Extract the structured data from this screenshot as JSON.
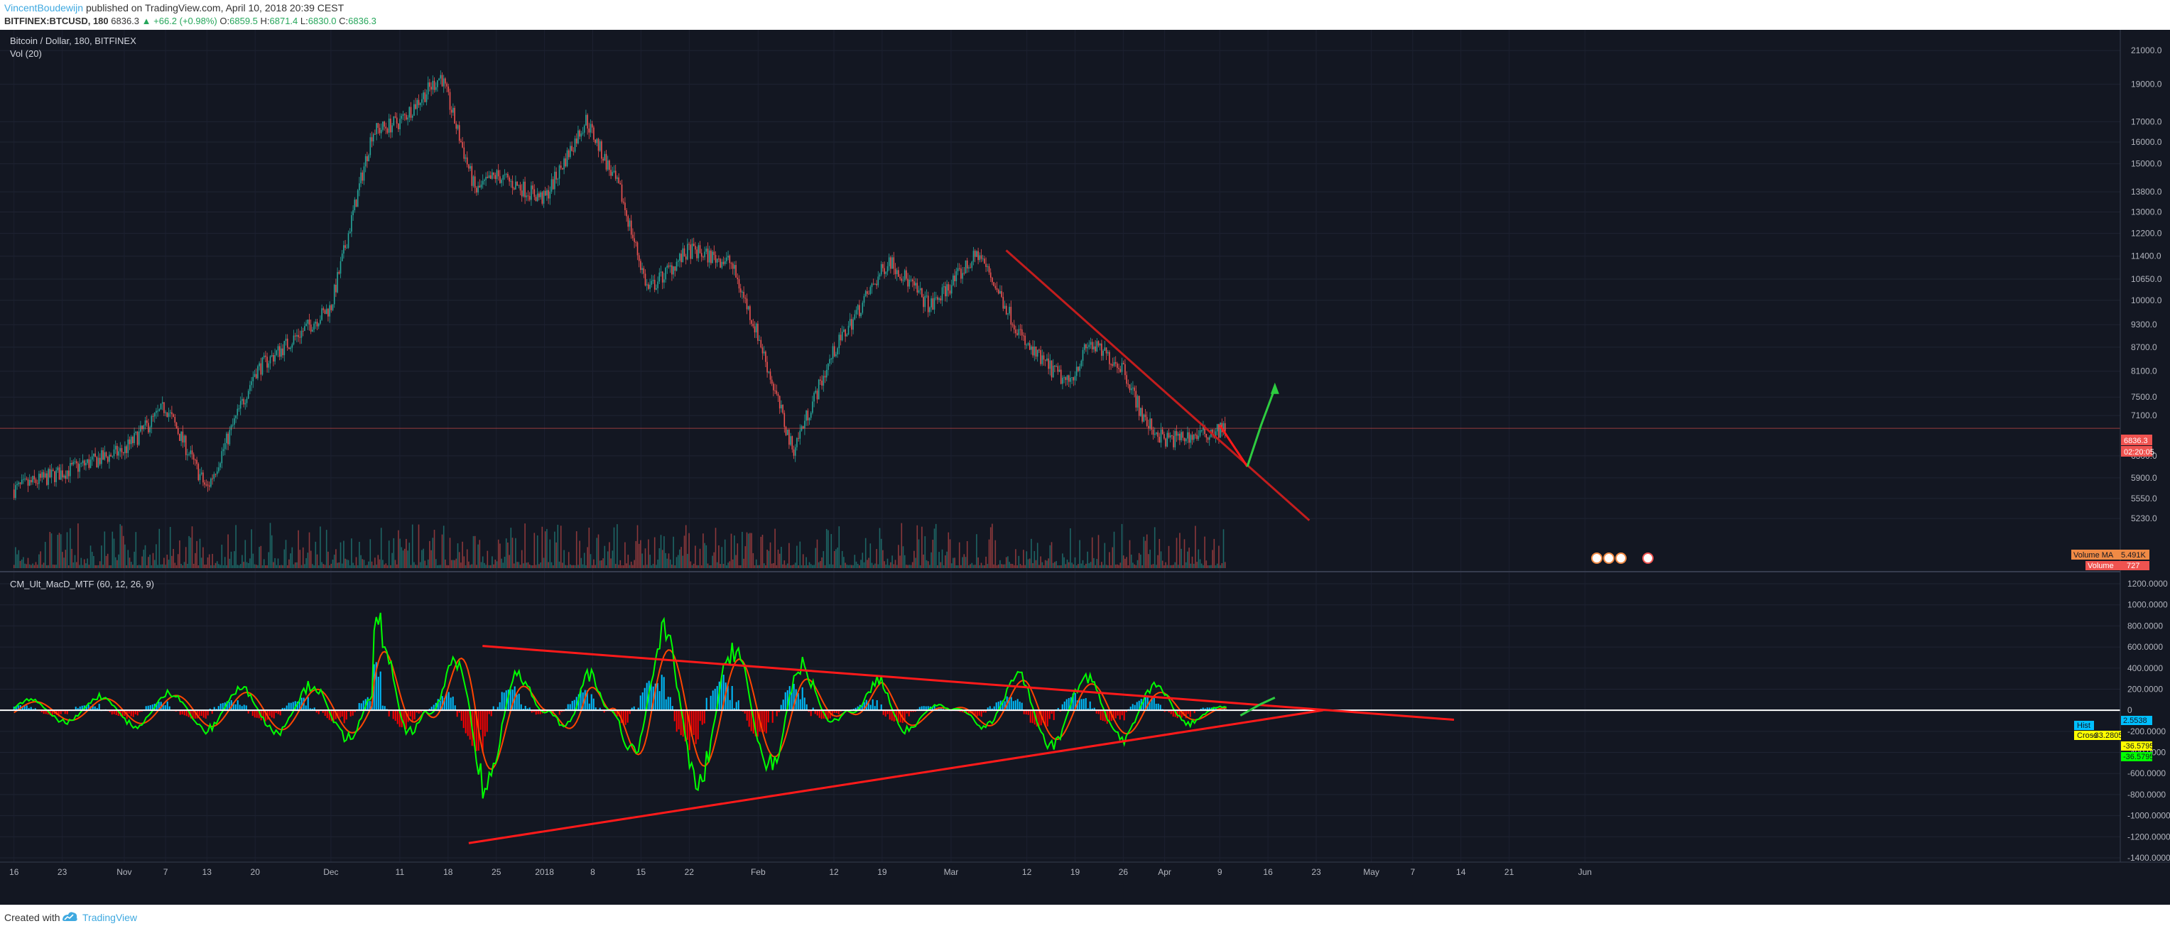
{
  "header": {
    "author": "VincentBoudewijn",
    "published_text": "published on TradingView.com, April 10, 2018 20:39 CEST",
    "symbol": "BITFINEX:BTCUSD, 180",
    "last": "6836.3",
    "change": "▲ +66.2 (+0.98%)",
    "ohlc_o_label": "O:",
    "ohlc_o": "6859.5",
    "ohlc_h_label": "H:",
    "ohlc_h": "6871.4",
    "ohlc_l_label": "L:",
    "ohlc_l": "6830.0",
    "ohlc_c_label": "C:",
    "ohlc_c": "6836.3"
  },
  "price_pane": {
    "title": "Bitcoin / Dollar, 180, BITFINEX",
    "vol_label": "Vol (20)",
    "last_price_tag": "6836.3",
    "countdown_tag": "02:20:05",
    "vol_ma_tag": "Volume MA",
    "vol_ma_value": "5.491K",
    "volume_tag": "Volume",
    "volume_value": "727"
  },
  "indicator_pane": {
    "title": "CM_Ult_MacD_MTF (60, 12, 26, 9)",
    "hist_tag": "Hist",
    "hist_value": "2.5538",
    "cross_tag": "Cross",
    "cross_value": "-33.2805",
    "macd_value": "-36.5795",
    "signal_value": "-36.5795"
  },
  "footer": {
    "created_with": "Created with",
    "brand": "TradingView"
  },
  "colors": {
    "background": "#131722",
    "up": "#26a69a",
    "down": "#ef5350",
    "trendline": "#c31d1d",
    "arrow": "#2ecc40",
    "hist_up": "#00bfff",
    "hist_down": "#ff0000",
    "macd": "#00ff00",
    "signal": "#ff4500"
  },
  "chart_data": [
    {
      "type": "line",
      "title": "Bitcoin / Dollar, 180, BITFINEX",
      "scale": "log",
      "y_ticks": [
        "21000.0",
        "19000.0",
        "17000.0",
        "16000.0",
        "15000.0",
        "13800.0",
        "13000.0",
        "12200.0",
        "11400.0",
        "10650.0",
        "10000.0",
        "9300.0",
        "8700.0",
        "8100.0",
        "7500.0",
        "7100.0",
        "6300.0",
        "5900.0",
        "5550.0",
        "5230.0"
      ],
      "x_ticks": [
        "16",
        "23",
        "Nov",
        "7",
        "13",
        "20",
        "Dec",
        "11",
        "18",
        "25",
        "2018",
        "8",
        "15",
        "22",
        "Feb",
        "12",
        "19",
        "Mar",
        "12",
        "19",
        "26",
        "Apr",
        "9",
        "16",
        "23",
        "May",
        "7",
        "14",
        "21",
        "Jun"
      ],
      "x": [
        "2017-10-16",
        "2017-10-23",
        "2017-11-01",
        "2017-11-07",
        "2017-11-13",
        "2017-11-20",
        "2017-12-01",
        "2017-12-07",
        "2017-12-11",
        "2017-12-17",
        "2017-12-22",
        "2017-12-25",
        "2018-01-01",
        "2018-01-07",
        "2018-01-12",
        "2018-01-16",
        "2018-01-22",
        "2018-01-28",
        "2018-02-01",
        "2018-02-06",
        "2018-02-12",
        "2018-02-20",
        "2018-02-26",
        "2018-03-05",
        "2018-03-12",
        "2018-03-18",
        "2018-03-21",
        "2018-03-26",
        "2018-03-29",
        "2018-04-01",
        "2018-04-06",
        "2018-04-10"
      ],
      "series": [
        {
          "values": [
            5700,
            6000,
            6400,
            7300,
            5700,
            8100,
            9800,
            16500,
            17000,
            19500,
            13800,
            14500,
            13500,
            17100,
            13800,
            10300,
            11600,
            11200,
            9000,
            6400,
            8600,
            11300,
            9800,
            11500,
            8700,
            7800,
            8800,
            8200,
            7000,
            6600,
            6700,
            6836
          ]
        }
      ],
      "ylim": [
        5100,
        21500
      ]
    },
    {
      "type": "line",
      "title": "CM_Ult_MacD_MTF (60, 12, 26, 9)",
      "y_ticks": [
        "1200.0000",
        "1000.0000",
        "800.0000",
        "600.0000",
        "400.0000",
        "200.0000",
        "0",
        "-200.0000",
        "-400.0000",
        "-600.0000",
        "-800.0000",
        "-1000.0000",
        "-1200.0000",
        "-1400.0000"
      ],
      "ylim": [
        -1400,
        1200
      ],
      "x": [
        "2017-12-07",
        "2017-12-22",
        "2018-01-07",
        "2018-01-16",
        "2018-02-06",
        "2018-02-19",
        "2018-03-12",
        "2018-03-29",
        "2018-04-10"
      ],
      "series": [
        {
          "values": [
            1250,
            -1200,
            600,
            -1000,
            -700,
            450,
            -500,
            -350,
            -36.5795
          ]
        }
      ]
    }
  ]
}
